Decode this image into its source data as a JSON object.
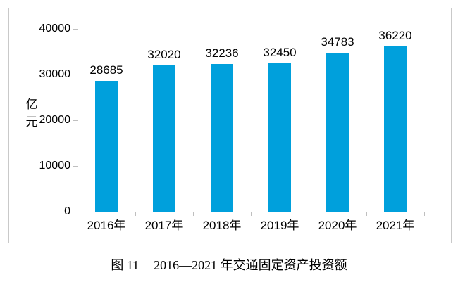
{
  "figure": {
    "caption": {
      "label": "图 11",
      "title": "2016—2021 年交通固定资产投资额"
    }
  },
  "chart_data": {
    "type": "bar",
    "categories": [
      "2016年",
      "2017年",
      "2018年",
      "2019年",
      "2020年",
      "2021年"
    ],
    "values": [
      28685,
      32020,
      32236,
      32450,
      34783,
      36220
    ],
    "data_labels": [
      "28685",
      "32020",
      "32236",
      "32450",
      "34783",
      "36220"
    ],
    "title": "图 11 2016—2021 年交通固定资产投资额",
    "xlabel": "",
    "ylabel": "亿元",
    "yticks": [
      0,
      10000,
      20000,
      30000,
      40000
    ],
    "ylim": [
      0,
      40000
    ],
    "grid": false,
    "legend_position": "none",
    "show_data_labels": true,
    "colors": {
      "bar": "#00a0dc",
      "axis": "#bfbfbf",
      "frame_border": "#c9c9c9",
      "text": "#000000"
    }
  }
}
